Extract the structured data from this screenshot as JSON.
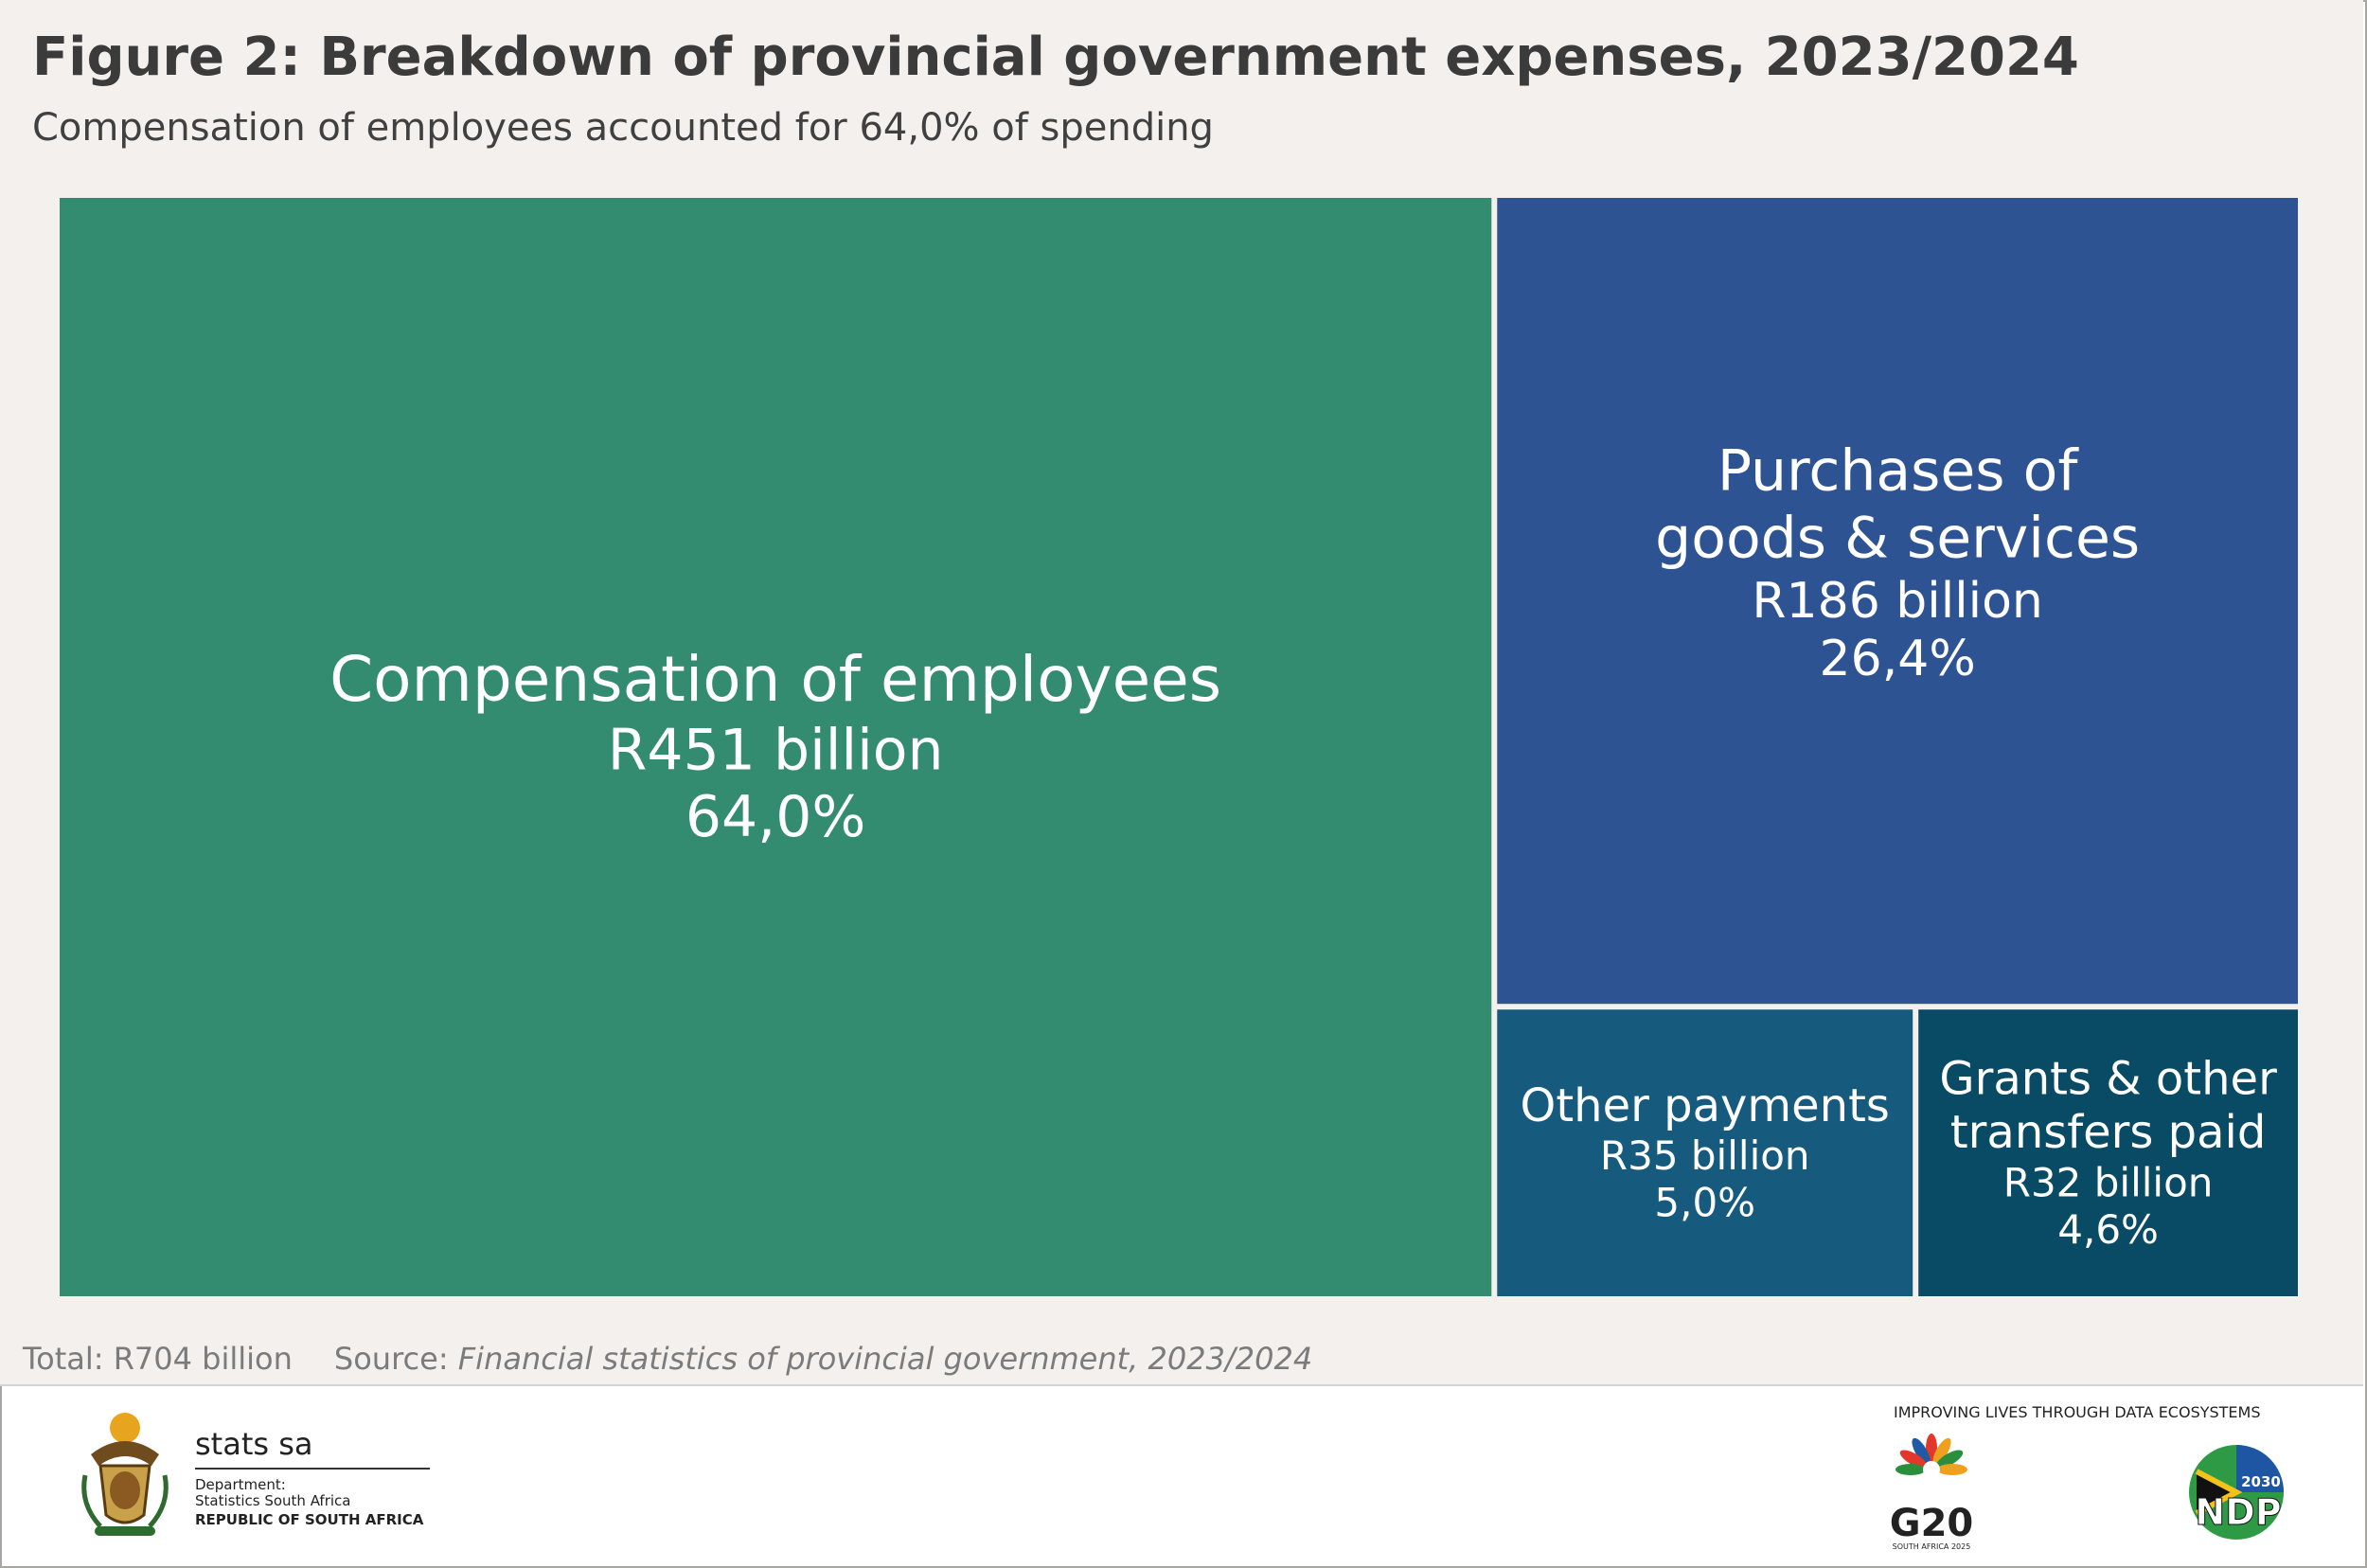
{
  "title": "Figure 2: Breakdown of provincial government expenses, 2023/2024",
  "subtitle": "Compensation of employees accounted for 64,0% of spending",
  "footnote": {
    "total": "Total: R704  billion",
    "source_label": "Source:",
    "source_title": "Financial statistics of provincial government, 2023/2024"
  },
  "chart_data": {
    "type": "treemap",
    "title": "Figure 2: Breakdown of provincial government expenses, 2023/2024",
    "subtitle": "Compensation of employees accounted for 64,0% of spending",
    "unit": "R billion",
    "total": 704,
    "items": [
      {
        "name": "Compensation of employees",
        "label_lines": [
          "Compensation of employees"
        ],
        "value": 451,
        "value_label": "R451 billion",
        "percent": 64.0,
        "percent_label": "64,0%",
        "color": "#338b70"
      },
      {
        "name": "Purchases of goods & services",
        "label_lines": [
          "Purchases of",
          "goods & services"
        ],
        "value": 186,
        "value_label": "R186 billion",
        "percent": 26.4,
        "percent_label": "26,4%",
        "color": "#2e5393"
      },
      {
        "name": "Other payments",
        "label_lines": [
          "Other payments"
        ],
        "value": 35,
        "value_label": "R35 billion",
        "percent": 5.0,
        "percent_label": "5,0%",
        "color": "#165a7e"
      },
      {
        "name": "Grants & other transfers paid",
        "label_lines": [
          "Grants & other",
          "transfers paid"
        ],
        "value": 32,
        "value_label": "R32 billion",
        "percent": 4.6,
        "percent_label": "4,6%",
        "color": "#094a65"
      }
    ]
  },
  "logos": {
    "stats_name": "stats sa",
    "stats_dept_lines": [
      "Department:",
      "Statistics South Africa"
    ],
    "stats_country": "REPUBLIC OF SOUTH AFRICA",
    "tagline": "IMPROVING LIVES THROUGH DATA ECOSYSTEMS",
    "g20_text": "G20",
    "g20_sub": "SOUTH AFRICA 2025",
    "ndp_text": "NDP",
    "ndp_year": "2030"
  }
}
